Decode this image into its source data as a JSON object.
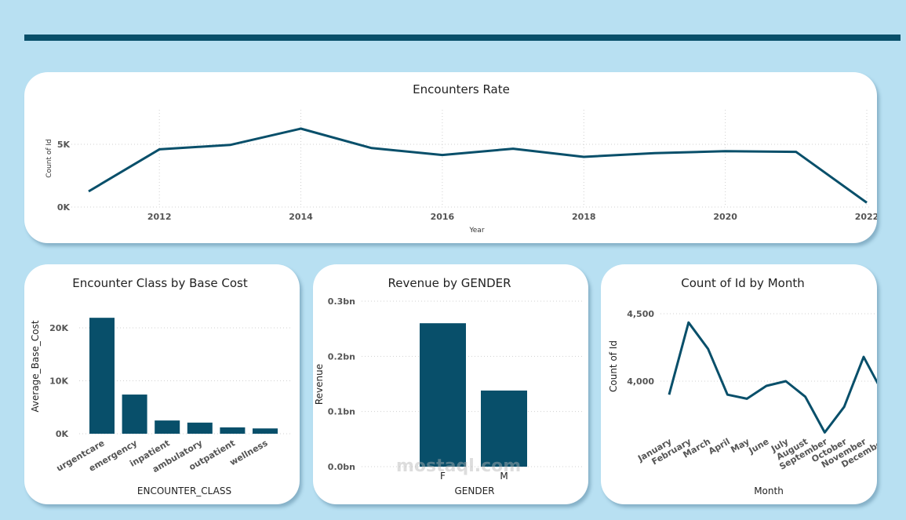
{
  "colors": {
    "background": "#b8e0f2",
    "accent": "#084f6a",
    "card": "#ffffff"
  },
  "watermark": "mostaql.com",
  "chart_data": [
    {
      "id": "encounters-rate",
      "type": "line",
      "title": "Encounters Rate",
      "xlabel": "Year",
      "ylabel": "Count of Id",
      "x": [
        2011,
        2012,
        2013,
        2014,
        2015,
        2016,
        2017,
        2018,
        2019,
        2020,
        2021,
        2022
      ],
      "values": [
        1250,
        4600,
        4950,
        6250,
        4700,
        4150,
        4650,
        4000,
        4300,
        4450,
        4400,
        350
      ],
      "xticks": [
        2012,
        2014,
        2016,
        2018,
        2020,
        2022
      ],
      "xtick_labels": [
        "2012",
        "2014",
        "2016",
        "2018",
        "2020",
        "2022"
      ],
      "yticks": [
        0,
        5000
      ],
      "ytick_labels": [
        "0K",
        "5K"
      ],
      "xlim": [
        2011,
        2022
      ],
      "ylim": [
        0,
        6500
      ],
      "grid": true
    },
    {
      "id": "encounter-class-cost",
      "type": "bar",
      "title": "Encounter Class by Base Cost",
      "xlabel": "ENCOUNTER_CLASS",
      "ylabel": "Average_Base_Cost",
      "categories": [
        "urgentcare",
        "emergency",
        "inpatient",
        "ambulatory",
        "outpatient",
        "wellness"
      ],
      "values": [
        21900,
        7400,
        2500,
        2100,
        1200,
        1000
      ],
      "yticks": [
        0,
        10000,
        20000
      ],
      "ytick_labels": [
        "0K",
        "10K",
        "20K"
      ],
      "ylim": [
        0,
        22000
      ],
      "grid": true
    },
    {
      "id": "revenue-gender",
      "type": "bar",
      "title": "Revenue by GENDER",
      "xlabel": "GENDER",
      "ylabel": "Revenue",
      "categories": [
        "F",
        "M"
      ],
      "values": [
        0.26,
        0.138
      ],
      "unit": "bn",
      "yticks": [
        0,
        0.1,
        0.2,
        0.3
      ],
      "ytick_labels": [
        "0.0bn",
        "0.1bn",
        "0.2bn",
        "0.3bn"
      ],
      "ylim": [
        0,
        0.3
      ],
      "grid": true
    },
    {
      "id": "count-by-month",
      "type": "line",
      "title": "Count of Id by Month",
      "xlabel": "Month",
      "ylabel": "Count of Id",
      "categories": [
        "January",
        "February",
        "March",
        "April",
        "May",
        "June",
        "July",
        "August",
        "September",
        "October",
        "November",
        "December"
      ],
      "values": [
        3900,
        4435,
        4240,
        3900,
        3870,
        3965,
        4000,
        3885,
        3620,
        3810,
        4180,
        3910
      ],
      "yticks": [
        4000,
        4500
      ],
      "ytick_labels": [
        "4,000",
        "4,500"
      ],
      "ylim": [
        3600,
        4520
      ],
      "grid": true
    }
  ]
}
